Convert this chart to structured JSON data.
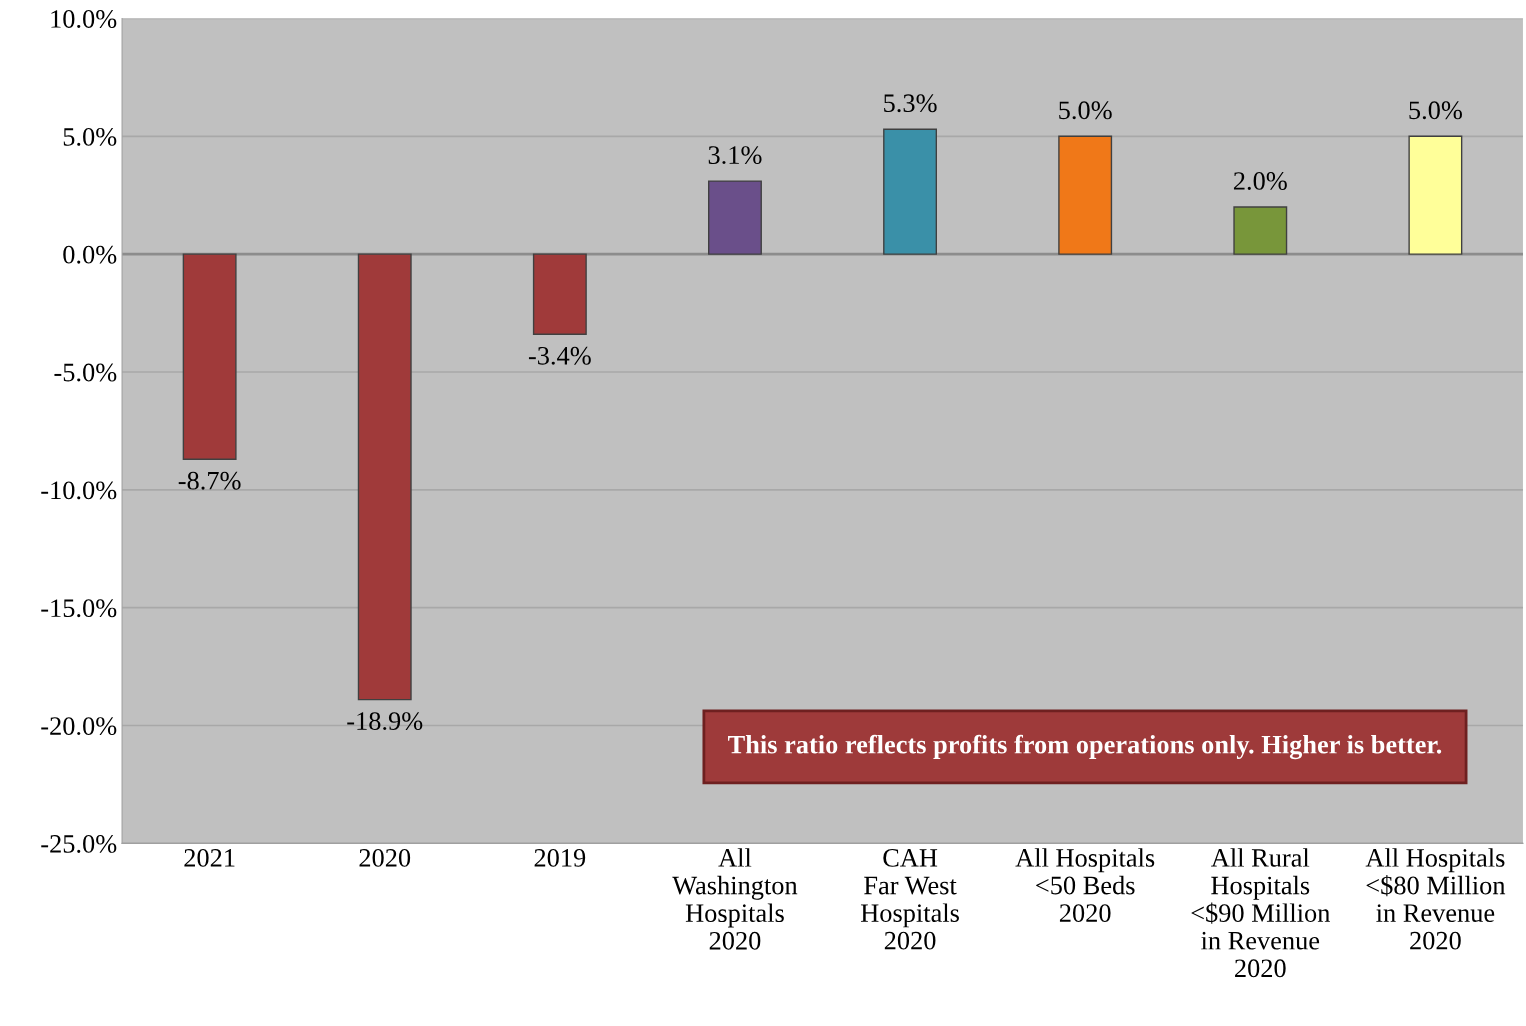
{
  "chart_data": {
    "type": "bar",
    "categories": [
      "2021",
      "2020",
      "2019",
      "All\nWashington\nHospitals\n2020",
      "CAH\nFar West\nHospitals\n2020",
      "All Hospitals\n<50 Beds\n2020",
      "All Rural\nHospitals\n<$90 Million\nin Revenue\n2020",
      "All Hospitals\n<$80 Million\nin Revenue\n2020"
    ],
    "values": [
      -8.7,
      -18.9,
      -3.4,
      3.1,
      5.3,
      5.0,
      2.0,
      5.0
    ],
    "colors": [
      "#a03a3a",
      "#a03a3a",
      "#a03a3a",
      "#6a4f8a",
      "#3a90a8",
      "#f07818",
      "#78963a",
      "#ffff99"
    ],
    "value_labels": [
      "-8.7%",
      "-18.9%",
      "-3.4%",
      "3.1%",
      "5.3%",
      "5.0%",
      "2.0%",
      "5.0%"
    ],
    "ylim": [
      -25,
      10
    ],
    "yticks": [
      {
        "value": -25,
        "label": "-25.0%"
      },
      {
        "value": -20,
        "label": "-20.0%"
      },
      {
        "value": -15,
        "label": "-15.0%"
      },
      {
        "value": -10,
        "label": "-10.0%"
      },
      {
        "value": -5,
        "label": "-5.0%"
      },
      {
        "value": 0,
        "label": "0.0%"
      },
      {
        "value": 5,
        "label": "5.0%"
      },
      {
        "value": 10,
        "label": "10.0%"
      }
    ],
    "grid": "y",
    "legend": false,
    "annotations": [
      "This ratio reflects profits from operations only. Higher is better."
    ]
  }
}
